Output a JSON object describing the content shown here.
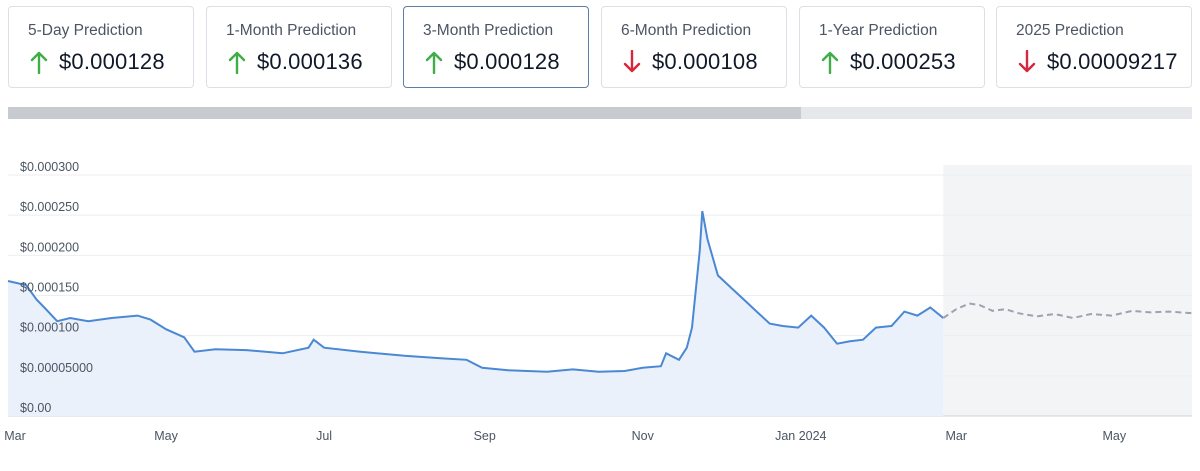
{
  "colors": {
    "up": "#3fae49",
    "down": "#d7263d",
    "line": "#4a88d4",
    "area": "#eaf1fb",
    "forecast_line": "#9ca3af",
    "forecast_area": "#f3f4f6",
    "grid": "#eceef1"
  },
  "cards": [
    {
      "label": "5-Day Prediction",
      "value": "$0.000128",
      "direction": "up",
      "icon": "arrow-up-icon"
    },
    {
      "label": "1-Month Prediction",
      "value": "$0.000136",
      "direction": "up",
      "icon": "arrow-up-icon"
    },
    {
      "label": "3-Month Prediction",
      "value": "$0.000128",
      "direction": "up",
      "icon": "arrow-up-icon",
      "active": true
    },
    {
      "label": "6-Month Prediction",
      "value": "$0.000108",
      "direction": "down",
      "icon": "arrow-down-icon"
    },
    {
      "label": "1-Year Prediction",
      "value": "$0.000253",
      "direction": "up",
      "icon": "arrow-up-icon"
    },
    {
      "label": "2025 Prediction",
      "value": "$0.00009217",
      "direction": "down",
      "icon": "arrow-down-icon"
    }
  ],
  "scrollbar": {
    "thumb_fraction": 0.67
  },
  "chart_data": {
    "type": "line",
    "ylim": [
      0,
      0.0003
    ],
    "yticks": [
      0,
      5e-05,
      0.0001,
      0.00015,
      0.0002,
      0.00025,
      0.0003
    ],
    "ytick_labels": [
      "$0.00",
      "$0.00005000",
      "$0.000100",
      "$0.000150",
      "$0.000200",
      "$0.000250",
      "$0.000300"
    ],
    "xlim": [
      "2023-03-01",
      "2024-05-31"
    ],
    "xticks": [
      "2023-03-01",
      "2023-05-01",
      "2023-07-01",
      "2023-09-01",
      "2023-11-01",
      "2024-01-01",
      "2024-03-01",
      "2024-05-01"
    ],
    "xtick_labels": [
      "Mar",
      "May",
      "Jul",
      "Sep",
      "Nov",
      "Jan 2024",
      "Mar",
      "May"
    ],
    "grid": true,
    "series": [
      {
        "kind": "historical",
        "x": [
          "2023-03-01",
          "2023-03-08",
          "2023-03-12",
          "2023-03-15",
          "2023-03-20",
          "2023-03-25",
          "2023-04-01",
          "2023-04-10",
          "2023-04-20",
          "2023-04-25",
          "2023-05-01",
          "2023-05-08",
          "2023-05-12",
          "2023-05-20",
          "2023-06-01",
          "2023-06-15",
          "2023-06-25",
          "2023-06-27",
          "2023-07-01",
          "2023-07-15",
          "2023-08-01",
          "2023-08-15",
          "2023-08-25",
          "2023-08-31",
          "2023-09-10",
          "2023-09-25",
          "2023-10-05",
          "2023-10-15",
          "2023-10-25",
          "2023-11-01",
          "2023-11-08",
          "2023-11-10",
          "2023-11-15",
          "2023-11-18",
          "2023-11-20",
          "2023-11-23",
          "2023-11-24",
          "2023-11-26",
          "2023-11-30",
          "2023-12-05",
          "2023-12-10",
          "2023-12-15",
          "2023-12-20",
          "2023-12-25",
          "2023-12-31",
          "2024-01-05",
          "2024-01-10",
          "2024-01-15",
          "2024-01-20",
          "2024-01-25",
          "2024-01-30",
          "2024-02-05",
          "2024-02-10",
          "2024-02-15",
          "2024-02-20",
          "2024-02-25"
        ],
        "y": [
          0.000168,
          0.000163,
          0.000145,
          0.000135,
          0.000118,
          0.000122,
          0.000118,
          0.000122,
          0.000125,
          0.00012,
          0.000108,
          9.8e-05,
          8e-05,
          8.3e-05,
          8.2e-05,
          7.8e-05,
          8.5e-05,
          9.5e-05,
          8.5e-05,
          8e-05,
          7.5e-05,
          7.2e-05,
          7e-05,
          6e-05,
          5.7e-05,
          5.5e-05,
          5.8e-05,
          5.5e-05,
          5.6e-05,
          6e-05,
          6.2e-05,
          7.8e-05,
          7e-05,
          8.5e-05,
          0.00011,
          0.000205,
          0.000255,
          0.00022,
          0.000175,
          0.00016,
          0.000145,
          0.00013,
          0.000115,
          0.000112,
          0.00011,
          0.000125,
          0.00011,
          9e-05,
          9.3e-05,
          9.5e-05,
          0.00011,
          0.000112,
          0.00013,
          0.000125,
          0.000135,
          0.000122
        ]
      },
      {
        "kind": "forecast",
        "x": [
          "2024-02-25",
          "2024-03-01",
          "2024-03-06",
          "2024-03-10",
          "2024-03-15",
          "2024-03-20",
          "2024-03-25",
          "2024-04-01",
          "2024-04-08",
          "2024-04-15",
          "2024-04-22",
          "2024-04-30",
          "2024-05-08",
          "2024-05-15",
          "2024-05-22",
          "2024-05-31"
        ],
        "y": [
          0.000122,
          0.000133,
          0.00014,
          0.000138,
          0.000131,
          0.000133,
          0.000128,
          0.000124,
          0.000127,
          0.000122,
          0.000127,
          0.000125,
          0.000131,
          0.000129,
          0.00013,
          0.000128
        ]
      }
    ]
  }
}
